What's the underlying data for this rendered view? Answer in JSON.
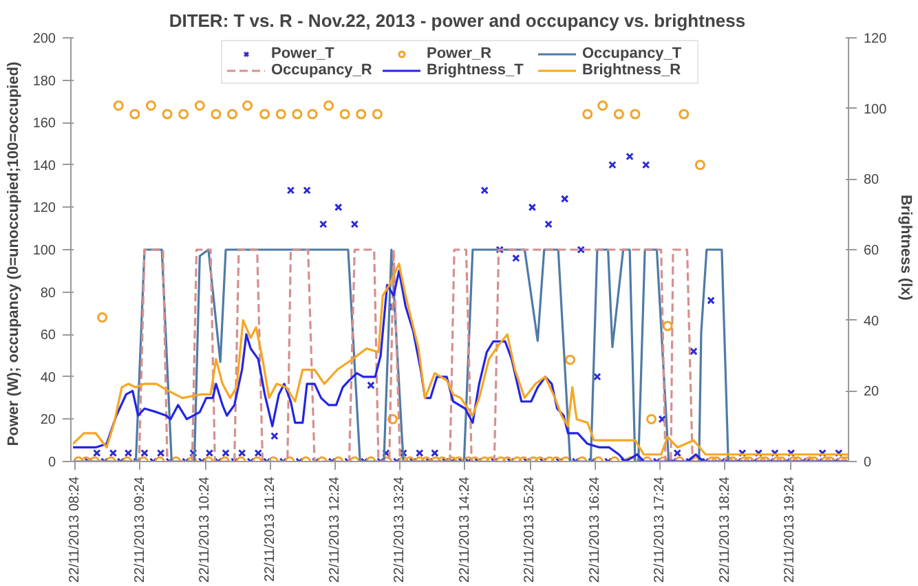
{
  "chart_data": {
    "type": "line",
    "title": "DITER: T vs. R - Nov.22, 2013  - power and occupancy vs. brightness",
    "ylabel": "Power  (W); occupancy  (0=unoccupied;100=occupied)",
    "y2label": "Brightness  (lx)",
    "xlim": [
      "2013-11-22T08:20",
      "2013-11-22T20:18"
    ],
    "ylim": [
      0,
      200
    ],
    "y2lim": [
      0,
      120
    ],
    "xticks": [
      {
        "value": "2013-11-22T08:24",
        "label": "22/11/2013 08:24"
      },
      {
        "value": "2013-11-22T09:24",
        "label": "22/11/2013 09:24"
      },
      {
        "value": "2013-11-22T10:24",
        "label": "22/11/2013 10:24"
      },
      {
        "value": "2013-11-22T11:24",
        "label": "22/11/2013 11:24"
      },
      {
        "value": "2013-11-22T12:24",
        "label": "22/11/2013 12:24"
      },
      {
        "value": "2013-11-22T13:24",
        "label": "22/11/2013 13:24"
      },
      {
        "value": "2013-11-22T14:24",
        "label": "22/11/2013 14:24"
      },
      {
        "value": "2013-11-22T15:24",
        "label": "22/11/2013 15:24"
      },
      {
        "value": "2013-11-22T16:24",
        "label": "22/11/2013 16:24"
      },
      {
        "value": "2013-11-22T17:24",
        "label": "22/11/2013 17:24"
      },
      {
        "value": "2013-11-22T18:24",
        "label": "22/11/2013 18:24"
      },
      {
        "value": "2013-11-22T19:24",
        "label": "22/11/2013 19:24"
      }
    ],
    "yticks": [
      0,
      20,
      40,
      60,
      80,
      100,
      120,
      140,
      160,
      180,
      200
    ],
    "y2ticks": [
      0,
      20,
      40,
      60,
      80,
      100,
      120
    ],
    "legend": "top",
    "series": [
      {
        "name": "Power_T",
        "type": "scatter",
        "marker": "cross",
        "color": "#2b2bd6",
        "x": [
          "2013-11-22T08:44",
          "2013-11-22T08:59",
          "2013-11-22T09:13",
          "2013-11-22T09:28",
          "2013-11-22T09:43",
          "2013-11-22T10:13",
          "2013-11-22T10:28",
          "2013-11-22T10:43",
          "2013-11-22T10:58",
          "2013-11-22T11:13",
          "2013-11-22T11:28",
          "2013-11-22T11:43",
          "2013-11-22T11:58",
          "2013-11-22T12:13",
          "2013-11-22T12:27",
          "2013-11-22T12:42",
          "2013-11-22T12:57",
          "2013-11-22T13:11",
          "2013-11-22T13:17",
          "2013-11-22T13:27",
          "2013-11-22T13:42",
          "2013-11-22T13:56",
          "2013-11-22T14:42",
          "2013-11-22T14:56",
          "2013-11-22T15:11",
          "2013-11-22T15:26",
          "2013-11-22T15:41",
          "2013-11-22T15:56",
          "2013-11-22T16:11",
          "2013-11-22T16:26",
          "2013-11-22T16:40",
          "2013-11-22T16:56",
          "2013-11-22T17:11",
          "2013-11-22T17:26",
          "2013-11-22T17:40",
          "2013-11-22T17:55",
          "2013-11-22T18:11",
          "2013-11-22T18:40",
          "2013-11-22T18:55",
          "2013-11-22T19:10",
          "2013-11-22T19:25",
          "2013-11-22T19:54",
          "2013-11-22T20:09",
          "2013-11-22T08:36",
          "2013-11-22T08:51",
          "2013-11-22T09:06",
          "2013-11-22T09:21",
          "2013-11-22T09:36",
          "2013-11-22T09:51",
          "2013-11-22T10:06",
          "2013-11-22T10:21",
          "2013-11-22T10:36",
          "2013-11-22T10:51",
          "2013-11-22T11:06",
          "2013-11-22T11:21",
          "2013-11-22T11:36",
          "2013-11-22T11:51",
          "2013-11-22T12:06",
          "2013-11-22T12:21",
          "2013-11-22T12:36",
          "2013-11-22T12:51",
          "2013-11-22T13:06",
          "2013-11-22T13:21",
          "2013-11-22T13:36",
          "2013-11-22T13:51",
          "2013-11-22T14:06",
          "2013-11-22T14:12",
          "2013-11-22T14:21",
          "2013-11-22T14:27",
          "2013-11-22T14:36",
          "2013-11-22T14:51",
          "2013-11-22T15:06",
          "2013-11-22T15:21",
          "2013-11-22T15:36",
          "2013-11-22T15:51",
          "2013-11-22T16:06",
          "2013-11-22T16:21",
          "2013-11-22T16:36",
          "2013-11-22T16:51",
          "2013-11-22T17:06",
          "2013-11-22T17:21",
          "2013-11-22T17:36",
          "2013-11-22T17:51",
          "2013-11-22T18:06",
          "2013-11-22T18:21",
          "2013-11-22T18:25",
          "2013-11-22T18:36",
          "2013-11-22T18:51",
          "2013-11-22T19:06",
          "2013-11-22T19:21",
          "2013-11-22T19:36",
          "2013-11-22T19:40",
          "2013-11-22T19:51",
          "2013-11-22T20:06"
        ],
        "values": [
          4,
          4,
          4,
          4,
          4,
          4,
          4,
          4,
          4,
          4,
          12,
          128,
          128,
          112,
          120,
          112,
          36,
          4,
          73,
          4,
          4,
          4,
          128,
          100,
          96,
          120,
          112,
          124,
          100,
          40,
          140,
          144,
          140,
          20,
          4,
          52,
          76,
          4,
          4,
          4,
          4,
          4,
          4,
          0,
          0,
          0,
          0,
          0,
          0,
          0,
          0,
          0,
          0,
          0,
          0,
          0,
          0,
          0,
          0,
          0,
          0,
          0,
          0,
          0,
          0,
          0,
          0,
          0,
          0,
          0,
          0,
          0,
          0,
          0,
          0,
          0,
          0,
          0,
          0,
          0,
          0,
          0,
          0,
          0,
          0,
          0,
          0,
          0,
          0,
          0,
          0,
          0,
          0,
          0
        ]
      },
      {
        "name": "Power_R",
        "type": "scatter",
        "marker": "circle",
        "color": "#f2a428",
        "x": [
          "2013-11-22T08:49",
          "2013-11-22T09:04",
          "2013-11-22T09:19",
          "2013-11-22T09:34",
          "2013-11-22T09:49",
          "2013-11-22T10:04",
          "2013-11-22T10:19",
          "2013-11-22T10:34",
          "2013-11-22T10:49",
          "2013-11-22T11:03",
          "2013-11-22T11:19",
          "2013-11-22T11:34",
          "2013-11-22T11:49",
          "2013-11-22T12:03",
          "2013-11-22T12:18",
          "2013-11-22T12:33",
          "2013-11-22T12:48",
          "2013-11-22T13:03",
          "2013-11-22T13:17",
          "2013-11-22T16:01",
          "2013-11-22T16:17",
          "2013-11-22T16:31",
          "2013-11-22T16:46",
          "2013-11-22T17:01",
          "2013-11-22T17:16",
          "2013-11-22T17:31",
          "2013-11-22T17:46",
          "2013-11-22T18:01",
          "2013-11-22T08:34",
          "2013-11-22T13:33",
          "2013-11-22T13:48",
          "2013-11-22T14:03",
          "2013-11-22T14:18",
          "2013-11-22T14:33",
          "2013-11-22T14:48",
          "2013-11-22T15:03",
          "2013-11-22T15:18",
          "2013-11-22T15:33",
          "2013-11-22T15:48",
          "2013-11-22T18:16",
          "2013-11-22T18:31",
          "2013-11-22T18:46",
          "2013-11-22T19:01",
          "2013-11-22T19:16",
          "2013-11-22T19:31",
          "2013-11-22T19:46",
          "2013-11-22T20:01",
          "2013-11-22T20:16",
          "2013-11-22T08:27",
          "2013-11-22T08:42",
          "2013-11-22T08:57",
          "2013-11-22T09:12",
          "2013-11-22T09:27",
          "2013-11-22T09:42",
          "2013-11-22T09:57",
          "2013-11-22T10:12",
          "2013-11-22T10:27",
          "2013-11-22T10:42",
          "2013-11-22T10:57",
          "2013-11-22T11:12",
          "2013-11-22T11:27",
          "2013-11-22T11:42",
          "2013-11-22T11:57",
          "2013-11-22T12:12",
          "2013-11-22T12:27",
          "2013-11-22T12:42",
          "2013-11-22T12:57",
          "2013-11-22T13:12",
          "2013-11-22T13:27",
          "2013-11-22T13:42",
          "2013-11-22T13:57",
          "2013-11-22T14:12",
          "2013-11-22T14:27",
          "2013-11-22T14:42",
          "2013-11-22T14:57",
          "2013-11-22T15:12",
          "2013-11-22T15:27",
          "2013-11-22T15:42",
          "2013-11-22T15:57",
          "2013-11-22T16:12",
          "2013-11-22T16:27",
          "2013-11-22T16:42",
          "2013-11-22T16:57",
          "2013-11-22T17:12",
          "2013-11-22T17:27",
          "2013-11-22T17:42",
          "2013-11-22T17:57",
          "2013-11-22T18:12",
          "2013-11-22T18:27",
          "2013-11-22T18:42",
          "2013-11-22T18:57",
          "2013-11-22T19:12",
          "2013-11-22T19:27",
          "2013-11-22T19:42",
          "2013-11-22T19:57",
          "2013-11-22T20:12"
        ],
        "values": [
          68,
          168,
          164,
          168,
          164,
          164,
          168,
          164,
          164,
          168,
          164,
          164,
          164,
          164,
          168,
          164,
          164,
          164,
          20,
          48,
          164,
          168,
          164,
          164,
          20,
          64,
          164,
          140,
          0,
          0,
          0,
          0,
          0,
          0,
          0,
          0,
          0,
          0,
          0,
          0,
          0,
          0,
          0,
          0,
          0,
          0,
          0,
          0,
          0,
          0,
          0,
          0,
          0,
          0,
          0,
          0,
          0,
          0,
          0,
          0,
          0,
          0,
          0,
          0,
          0,
          0,
          0,
          0,
          0,
          0,
          0,
          0,
          0,
          0,
          0,
          0,
          0,
          0,
          0,
          0,
          0,
          0,
          0,
          0,
          0,
          0,
          0,
          0,
          0,
          0,
          0,
          0,
          0,
          0,
          0,
          0
        ]
      },
      {
        "name": "Occupancy_T",
        "line_style": "solid",
        "color": "#4f7aa6",
        "x": [
          "2013-11-22T08:22",
          "2013-11-22T09:20",
          "2013-11-22T09:28",
          "2013-11-22T09:44",
          "2013-11-22T09:53",
          "2013-11-22T10:14",
          "2013-11-22T10:19",
          "2013-11-22T10:27",
          "2013-11-22T10:38",
          "2013-11-22T10:43",
          "2013-11-22T12:36",
          "2013-11-22T12:47",
          "2013-11-22T13:09",
          "2013-11-22T13:16",
          "2013-11-22T13:27",
          "2013-11-22T14:23",
          "2013-11-22T14:31",
          "2013-11-22T15:19",
          "2013-11-22T15:31",
          "2013-11-22T15:37",
          "2013-11-22T15:50",
          "2013-11-22T16:01",
          "2013-11-22T16:20",
          "2013-11-22T16:26",
          "2013-11-22T16:36",
          "2013-11-22T16:40",
          "2013-11-22T16:50",
          "2013-11-22T16:56",
          "2013-11-22T17:01",
          "2013-11-22T17:04",
          "2013-11-22T17:10",
          "2013-11-22T17:21",
          "2013-11-22T17:32",
          "2013-11-22T18:00",
          "2013-11-22T18:02",
          "2013-11-22T18:07",
          "2013-11-22T18:21",
          "2013-11-22T18:27",
          "2013-11-22T20:18"
        ],
        "values": [
          0,
          0,
          100,
          100,
          0,
          0,
          97,
          100,
          47,
          100,
          100,
          0,
          0,
          100,
          0,
          0,
          100,
          100,
          57,
          100,
          100,
          0,
          0,
          100,
          100,
          54,
          100,
          100,
          0,
          0,
          100,
          100,
          0,
          0,
          61,
          100,
          100,
          0,
          0
        ]
      },
      {
        "name": "Occupancy_R",
        "line_style": "dashed",
        "color": "#d4908e",
        "x": [
          "2013-11-22T08:22",
          "2013-11-22T09:23",
          "2013-11-22T09:28",
          "2013-11-22T09:45",
          "2013-11-22T09:49",
          "2013-11-22T10:12",
          "2013-11-22T10:16",
          "2013-11-22T10:29",
          "2013-11-22T10:33",
          "2013-11-22T10:51",
          "2013-11-22T10:55",
          "2013-11-22T11:12",
          "2013-11-22T11:17",
          "2013-11-22T11:40",
          "2013-11-22T11:43",
          "2013-11-22T11:59",
          "2013-11-22T12:05",
          "2013-11-22T12:37",
          "2013-11-22T12:42",
          "2013-11-22T13:00",
          "2013-11-22T13:04",
          "2013-11-22T13:14",
          "2013-11-22T13:18",
          "2013-11-22T13:24",
          "2013-11-22T14:10",
          "2013-11-22T14:14",
          "2013-11-22T14:25",
          "2013-11-22T14:30",
          "2013-11-22T14:51",
          "2013-11-22T14:55",
          "2013-11-22T17:25",
          "2013-11-22T17:29",
          "2013-11-22T17:34",
          "2013-11-22T17:36",
          "2013-11-22T17:49",
          "2013-11-22T17:54",
          "2013-11-22T20:18"
        ],
        "values": [
          0,
          0,
          100,
          100,
          0,
          0,
          100,
          100,
          0,
          0,
          100,
          100,
          0,
          0,
          100,
          100,
          0,
          0,
          100,
          100,
          0,
          0,
          100,
          0,
          0,
          100,
          100,
          0,
          0,
          100,
          100,
          0,
          0,
          100,
          100,
          0,
          0
        ]
      },
      {
        "name": "Brightness_T",
        "axis": "y2",
        "line_style": "solid",
        "color": "#2424e6",
        "x": [
          "2013-11-22T08:22",
          "2013-11-22T08:43",
          "2013-11-22T08:53",
          "2013-11-22T09:02",
          "2013-11-22T09:11",
          "2013-11-22T09:17",
          "2013-11-22T09:22",
          "2013-11-22T09:28",
          "2013-11-22T09:39",
          "2013-11-22T09:48",
          "2013-11-22T09:52",
          "2013-11-22T09:59",
          "2013-11-22T10:07",
          "2013-11-22T10:19",
          "2013-11-22T10:25",
          "2013-11-22T10:31",
          "2013-11-22T10:34",
          "2013-11-22T10:40",
          "2013-11-22T10:44",
          "2013-11-22T10:51",
          "2013-11-22T10:58",
          "2013-11-22T11:02",
          "2013-11-22T11:06",
          "2013-11-22T11:13",
          "2013-11-22T11:19",
          "2013-11-22T11:26",
          "2013-11-22T11:32",
          "2013-11-22T11:37",
          "2013-11-22T11:43",
          "2013-11-22T11:47",
          "2013-11-22T11:54",
          "2013-11-22T11:58",
          "2013-11-22T12:05",
          "2013-11-22T12:11",
          "2013-11-22T12:18",
          "2013-11-22T12:25",
          "2013-11-22T12:31",
          "2013-11-22T12:37",
          "2013-11-22T12:44",
          "2013-11-22T12:50",
          "2013-11-22T13:01",
          "2013-11-22T13:06",
          "2013-11-22T13:12",
          "2013-11-22T13:18",
          "2013-11-22T13:23",
          "2013-11-22T13:29",
          "2013-11-22T13:36",
          "2013-11-22T13:43",
          "2013-11-22T13:47",
          "2013-11-22T13:52",
          "2013-11-22T13:58",
          "2013-11-22T14:07",
          "2013-11-22T14:13",
          "2013-11-22T14:24",
          "2013-11-22T14:31",
          "2013-11-22T14:37",
          "2013-11-22T14:44",
          "2013-11-22T14:50",
          "2013-11-22T15:01",
          "2013-11-22T15:07",
          "2013-11-22T15:16",
          "2013-11-22T15:25",
          "2013-11-22T15:31",
          "2013-11-22T15:38",
          "2013-11-22T15:44",
          "2013-11-22T15:49",
          "2013-11-22T15:55",
          "2013-11-22T15:59",
          "2013-11-22T16:08",
          "2013-11-22T16:17",
          "2013-11-22T16:28",
          "2013-11-22T16:37",
          "2013-11-22T16:46",
          "2013-11-22T16:52",
          "2013-11-22T17:03",
          "2013-11-22T17:09",
          "2013-11-22T17:22",
          "2013-11-22T17:49",
          "2013-11-22T17:57",
          "2013-11-22T18:04",
          "2013-11-22T20:18"
        ],
        "values": [
          4,
          4,
          5,
          13,
          19,
          20,
          13,
          15,
          14,
          13,
          12,
          16,
          12,
          14,
          18,
          18,
          22,
          16,
          13,
          16,
          26,
          36,
          32,
          29,
          19,
          10,
          19,
          22,
          17,
          11,
          11,
          22,
          22,
          18,
          16,
          16,
          21,
          23,
          25,
          24,
          24,
          30,
          50,
          47,
          54,
          44,
          37,
          26,
          18,
          18,
          24,
          24,
          17,
          15,
          11,
          22,
          31,
          34,
          34,
          29,
          17,
          17,
          21,
          24,
          22,
          15,
          13,
          8,
          8,
          5,
          4,
          4,
          2,
          0,
          2,
          0,
          0,
          0,
          2,
          0,
          0
        ]
      },
      {
        "name": "Brightness_R",
        "axis": "y2",
        "line_style": "solid",
        "color": "#f5a623",
        "x": [
          "2013-11-22T08:22",
          "2013-11-22T08:32",
          "2013-11-22T08:43",
          "2013-11-22T08:53",
          "2013-11-22T09:00",
          "2013-11-22T09:07",
          "2013-11-22T09:13",
          "2013-11-22T09:20",
          "2013-11-22T09:28",
          "2013-11-22T09:39",
          "2013-11-22T09:50",
          "2013-11-22T10:03",
          "2013-11-22T10:20",
          "2013-11-22T10:29",
          "2013-11-22T10:34",
          "2013-11-22T10:40",
          "2013-11-22T10:47",
          "2013-11-22T10:53",
          "2013-11-22T10:59",
          "2013-11-22T11:06",
          "2013-11-22T11:11",
          "2013-11-22T11:17",
          "2013-11-22T11:23",
          "2013-11-22T11:30",
          "2013-11-22T11:39",
          "2013-11-22T11:47",
          "2013-11-22T11:54",
          "2013-11-22T12:05",
          "2013-11-22T12:14",
          "2013-11-22T12:26",
          "2013-11-22T12:40",
          "2013-11-22T12:53",
          "2013-11-22T13:04",
          "2013-11-22T13:08",
          "2013-11-22T13:14",
          "2013-11-22T13:23",
          "2013-11-22T13:29",
          "2013-11-22T13:41",
          "2013-11-22T13:47",
          "2013-11-22T13:56",
          "2013-11-22T14:07",
          "2013-11-22T14:13",
          "2013-11-22T14:20",
          "2013-11-22T14:31",
          "2013-11-22T14:37",
          "2013-11-22T14:46",
          "2013-11-22T14:55",
          "2013-11-22T15:03",
          "2013-11-22T15:10",
          "2013-11-22T15:19",
          "2013-11-22T15:29",
          "2013-11-22T15:38",
          "2013-11-22T15:47",
          "2013-11-22T15:53",
          "2013-11-22T15:59",
          "2013-11-22T16:03",
          "2013-11-22T16:07",
          "2013-11-22T16:17",
          "2013-11-22T16:23",
          "2013-11-22T17:01",
          "2013-11-22T17:09",
          "2013-11-22T17:25",
          "2013-11-22T17:31",
          "2013-11-22T17:40",
          "2013-11-22T17:55",
          "2013-11-22T18:06",
          "2013-11-22T20:18"
        ],
        "values": [
          5,
          8,
          8,
          4,
          11,
          21,
          22,
          21,
          22,
          22,
          20,
          18,
          19,
          19,
          29,
          22,
          18,
          21,
          40,
          35,
          38,
          29,
          18,
          22,
          21,
          17,
          26,
          26,
          22,
          26,
          29,
          32,
          31,
          47,
          50,
          56,
          47,
          32,
          18,
          25,
          23,
          19,
          18,
          13,
          18,
          29,
          33,
          36,
          26,
          18,
          22,
          24,
          18,
          13,
          10,
          21,
          12,
          11,
          6,
          6,
          2,
          2,
          7,
          4,
          6,
          2,
          2
        ]
      }
    ]
  }
}
